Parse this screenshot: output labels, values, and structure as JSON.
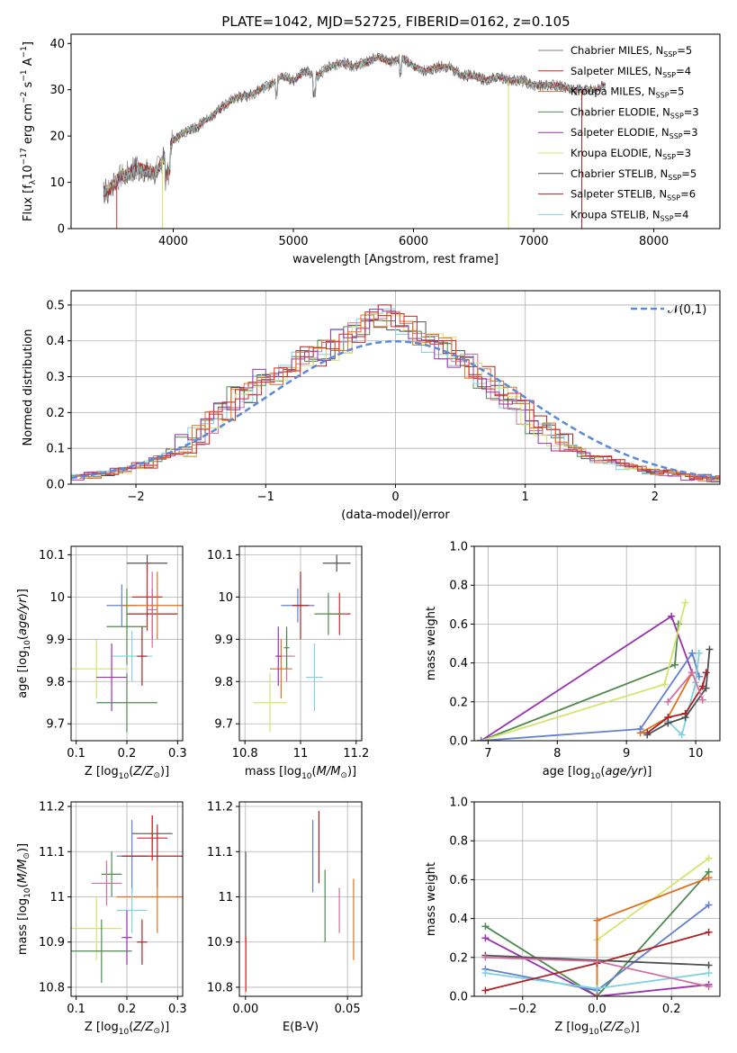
{
  "figure_title": "PLATE=1042, MJD=52725, FIBERID=0162, z=0.105",
  "colors": [
    "#808080",
    "#d62728",
    "#c07830",
    "#4f8a4f",
    "#9a30b0",
    "#d4e46c",
    "#505050",
    "#b02020",
    "#7fd0e0",
    "#d070a0",
    "#e07020",
    "#6080d0"
  ],
  "chart_data": [
    {
      "id": "spectrum",
      "type": "line",
      "title": "PLATE=1042, MJD=52725, FIBERID=0162, z=0.105",
      "xlabel": "wavelength [Angstrom, rest frame]",
      "ylabel": "Flux [f_λ10^-17 erg cm^-2 s^-1 A^-1]",
      "xlim": [
        3150,
        8550
      ],
      "ylim": [
        0,
        42
      ],
      "xticks": [
        4000,
        5000,
        6000,
        7000,
        8000
      ],
      "yticks": [
        0,
        10,
        20,
        30,
        40
      ],
      "grid": false,
      "legend_position": "top-right",
      "x": [
        3450,
        3550,
        3700,
        3850,
        4000,
        4100,
        4200,
        4300,
        4400,
        4500,
        4650,
        4800,
        4900,
        5000,
        5100,
        5200,
        5300,
        5400,
        5500,
        5600,
        5700,
        5800,
        5900,
        6000,
        6100,
        6200,
        6300,
        6400,
        6500,
        6600,
        6700,
        6800,
        6900,
        7000,
        7100,
        7200,
        7300,
        7400,
        7500,
        7600
      ],
      "y": [
        8,
        11,
        13,
        12,
        19,
        21,
        22,
        24,
        26,
        28,
        29,
        31,
        33,
        32,
        34,
        33,
        35,
        36,
        35,
        36,
        37,
        36,
        37,
        35,
        34,
        35,
        35,
        33,
        33,
        32,
        33,
        32,
        32,
        31,
        31,
        31,
        30,
        30,
        30,
        31
      ],
      "series": [
        {
          "name": "Chabrier MILES, N_SSP=5",
          "label_main": "Chabrier MILES, N",
          "label_sub": "SSP",
          "label_tail": "=5"
        },
        {
          "name": "Salpeter MILES, N_SSP=4",
          "label_main": "Salpeter MILES, N",
          "label_sub": "SSP",
          "label_tail": "=4"
        },
        {
          "name": "Kroupa MILES, N_SSP=5",
          "label_main": "Kroupa MILES, N",
          "label_sub": "SSP",
          "label_tail": "=5"
        },
        {
          "name": "Chabrier ELODIE, N_SSP=3",
          "label_main": "Chabrier ELODIE, N",
          "label_sub": "SSP",
          "label_tail": "=3"
        },
        {
          "name": "Salpeter ELODIE, N_SSP=3",
          "label_main": "Salpeter ELODIE, N",
          "label_sub": "SSP",
          "label_tail": "=3"
        },
        {
          "name": "Kroupa ELODIE, N_SSP=3",
          "label_main": "Kroupa ELODIE, N",
          "label_sub": "SSP",
          "label_tail": "=3"
        },
        {
          "name": "Chabrier STELIB, N_SSP=5",
          "label_main": "Chabrier STELIB, N",
          "label_sub": "SSP",
          "label_tail": "=5"
        },
        {
          "name": "Salpeter STELIB, N_SSP=6",
          "label_main": "Salpeter STELIB, N",
          "label_sub": "SSP",
          "label_tail": "=6"
        },
        {
          "name": "Kroupa STELIB, N_SSP=4",
          "label_main": "Kroupa STELIB, N",
          "label_sub": "SSP",
          "label_tail": "=4"
        }
      ]
    },
    {
      "id": "residuals",
      "type": "line",
      "xlabel": "(data-model)/error",
      "ylabel": "Normed distribution",
      "xlim": [
        -2.5,
        2.5
      ],
      "ylim": [
        0,
        0.54
      ],
      "xticks": [
        -2,
        -1,
        0,
        1,
        2
      ],
      "yticks": [
        0.0,
        0.1,
        0.2,
        0.3,
        0.4,
        0.5
      ],
      "grid": true,
      "legend_position": "top-right",
      "legend_label": "𝒩(0,1)",
      "bins_start": -2.5,
      "bin_width": 0.1,
      "histogram": [
        0.02,
        0.025,
        0.03,
        0.04,
        0.05,
        0.055,
        0.07,
        0.09,
        0.11,
        0.14,
        0.17,
        0.2,
        0.24,
        0.26,
        0.29,
        0.31,
        0.33,
        0.35,
        0.36,
        0.38,
        0.4,
        0.42,
        0.45,
        0.47,
        0.46,
        0.44,
        0.42,
        0.4,
        0.38,
        0.36,
        0.33,
        0.3,
        0.27,
        0.24,
        0.2,
        0.17,
        0.14,
        0.12,
        0.1,
        0.08,
        0.07,
        0.06,
        0.05,
        0.04,
        0.035,
        0.03,
        0.025,
        0.02,
        0.018,
        0.015
      ],
      "series": [
        {
          "name": "N(0,1)",
          "type": "gaussian",
          "mean": 0,
          "sigma": 1
        }
      ]
    },
    {
      "id": "age-vs-Z",
      "type": "scatter",
      "xlabel": "Z [log10(Z/Z☉)]",
      "ylabel": "age [log10(age/yr)]",
      "xlim": [
        0.09,
        0.31
      ],
      "ylim": [
        9.66,
        10.12
      ],
      "xticks": [
        0.1,
        0.2,
        0.3
      ],
      "yticks": [
        9.7,
        9.8,
        9.9,
        10.0,
        10.1
      ],
      "grid": true,
      "points": [
        {
          "x": 0.24,
          "y": 10.08,
          "xerr": 0.04,
          "yerr": 0.02
        },
        {
          "x": 0.24,
          "y": 10.0,
          "xerr": 0.03,
          "yerr": 0.08
        },
        {
          "x": 0.19,
          "y": 9.98,
          "xerr": 0.03,
          "yerr": 0.05
        },
        {
          "x": 0.25,
          "y": 9.96,
          "xerr": 0.05,
          "yerr": 0.06
        },
        {
          "x": 0.2,
          "y": 9.93,
          "xerr": 0.04,
          "yerr": 0.09
        },
        {
          "x": 0.25,
          "y": 9.97,
          "xerr": 0.01,
          "yerr": 0.09
        },
        {
          "x": 0.26,
          "y": 9.98,
          "xerr": 0.07,
          "yerr": 0.08
        },
        {
          "x": 0.21,
          "y": 9.86,
          "xerr": 0.04,
          "yerr": 0.06
        },
        {
          "x": 0.14,
          "y": 9.83,
          "xerr": 0.06,
          "yerr": 0.07
        },
        {
          "x": 0.17,
          "y": 9.81,
          "xerr": 0.03,
          "yerr": 0.08
        },
        {
          "x": 0.2,
          "y": 9.75,
          "xerr": 0.06,
          "yerr": 0.07
        },
        {
          "x": 0.23,
          "y": 9.86,
          "xerr": 0.01,
          "yerr": 0.07
        }
      ]
    },
    {
      "id": "age-vs-mass",
      "type": "scatter",
      "xlabel": "mass [log10(M/M☉)]",
      "ylabel": "",
      "xlim": [
        10.78,
        11.22
      ],
      "ylim": [
        9.66,
        10.12
      ],
      "xticks": [
        10.8,
        11.0,
        11.2
      ],
      "yticks": [
        9.7,
        9.8,
        9.9,
        10.0,
        10.1
      ],
      "grid": true,
      "points": [
        {
          "x": 11.13,
          "y": 10.08,
          "xerr": 0.05,
          "yerr": 0.02
        },
        {
          "x": 11.14,
          "y": 9.96,
          "xerr": 0.04,
          "yerr": 0.05
        },
        {
          "x": 10.99,
          "y": 9.98,
          "xerr": 0.06,
          "yerr": 0.04
        },
        {
          "x": 11.0,
          "y": 9.98,
          "xerr": 0.03,
          "yerr": 0.08
        },
        {
          "x": 11.1,
          "y": 9.96,
          "xerr": 0.05,
          "yerr": 0.05
        },
        {
          "x": 10.95,
          "y": 9.86,
          "xerr": 0.03,
          "yerr": 0.06
        },
        {
          "x": 10.93,
          "y": 9.83,
          "xerr": 0.04,
          "yerr": 0.07
        },
        {
          "x": 11.05,
          "y": 9.81,
          "xerr": 0.03,
          "yerr": 0.08
        },
        {
          "x": 10.89,
          "y": 9.75,
          "xerr": 0.06,
          "yerr": 0.07
        },
        {
          "x": 10.92,
          "y": 9.86,
          "xerr": 0.01,
          "yerr": 0.07
        },
        {
          "x": 10.95,
          "y": 9.88,
          "xerr": 0.01,
          "yerr": 0.05
        }
      ]
    },
    {
      "id": "weight-vs-age",
      "type": "line",
      "xlabel": "age [log10(age/yr)]",
      "ylabel": "mass weight",
      "xlim": [
        6.8,
        10.35
      ],
      "ylim": [
        0,
        1.0
      ],
      "xticks": [
        7,
        8,
        9,
        10
      ],
      "yticks": [
        0.0,
        0.2,
        0.4,
        0.6,
        0.8,
        1.0
      ],
      "grid": true,
      "series": [
        {
          "name": "Chabrier ELODIE",
          "x": [
            6.9,
            9.7,
            9.75
          ],
          "y": [
            0.0,
            0.39,
            0.6
          ]
        },
        {
          "name": "Salpeter ELODIE",
          "x": [
            6.9,
            9.65,
            9.95
          ],
          "y": [
            0.0,
            0.64,
            0.35
          ]
        },
        {
          "name": "Kroupa ELODIE",
          "x": [
            6.9,
            9.55,
            9.85
          ],
          "y": [
            0.0,
            0.29,
            0.71
          ]
        },
        {
          "name": "Kroupa MILES",
          "x": [
            9.2,
            9.6,
            9.95
          ],
          "y": [
            0.04,
            0.12,
            0.35
          ]
        },
        {
          "name": "Chabrier MILES",
          "x": [
            6.9,
            9.2,
            9.95,
            10.05
          ],
          "y": [
            0.0,
            0.06,
            0.45,
            0.33
          ]
        },
        {
          "name": "Kroupa STELIB",
          "x": [
            9.6,
            9.8,
            10.0,
            10.05
          ],
          "y": [
            0.1,
            0.03,
            0.3,
            0.45
          ]
        },
        {
          "name": "Salpeter STELIB",
          "x": [
            9.3,
            9.6,
            9.85,
            10.1,
            10.15
          ],
          "y": [
            0.04,
            0.12,
            0.14,
            0.28,
            0.35
          ]
        },
        {
          "name": "Chabrier STELIB",
          "x": [
            9.3,
            9.6,
            9.85,
            10.15,
            10.2
          ],
          "y": [
            0.03,
            0.09,
            0.12,
            0.27,
            0.47
          ]
        },
        {
          "name": "pink",
          "x": [
            9.6,
            9.95,
            10.1
          ],
          "y": [
            0.2,
            0.35,
            0.21
          ]
        }
      ]
    },
    {
      "id": "mass-vs-Z",
      "type": "scatter",
      "xlabel": "Z [log10(Z/Z☉)]",
      "ylabel": "mass [log10(M/M☉)]",
      "xlim": [
        0.09,
        0.31
      ],
      "ylim": [
        10.78,
        11.21
      ],
      "xticks": [
        0.1,
        0.2,
        0.3
      ],
      "yticks": [
        10.8,
        10.9,
        11.0,
        11.1,
        11.2
      ],
      "grid": true,
      "points": [
        {
          "x": 0.25,
          "y": 11.14,
          "xerr": 0.04,
          "yerr": 0.04
        },
        {
          "x": 0.25,
          "y": 11.13,
          "xerr": 0.03,
          "yerr": 0.05
        },
        {
          "x": 0.21,
          "y": 11.09,
          "xerr": 0.03,
          "yerr": 0.08
        },
        {
          "x": 0.26,
          "y": 11.09,
          "xerr": 0.07,
          "yerr": 0.07
        },
        {
          "x": 0.17,
          "y": 11.05,
          "xerr": 0.02,
          "yerr": 0.05
        },
        {
          "x": 0.16,
          "y": 11.03,
          "xerr": 0.03,
          "yerr": 0.05
        },
        {
          "x": 0.26,
          "y": 11.0,
          "xerr": 0.08,
          "yerr": 0.08
        },
        {
          "x": 0.21,
          "y": 10.97,
          "xerr": 0.03,
          "yerr": 0.05
        },
        {
          "x": 0.14,
          "y": 10.93,
          "xerr": 0.05,
          "yerr": 0.07
        },
        {
          "x": 0.2,
          "y": 10.91,
          "xerr": 0.01,
          "yerr": 0.06
        },
        {
          "x": 0.15,
          "y": 10.88,
          "xerr": 0.06,
          "yerr": 0.07
        },
        {
          "x": 0.23,
          "y": 10.9,
          "xerr": 0.01,
          "yerr": 0.05
        }
      ]
    },
    {
      "id": "mass-vs-EBV",
      "type": "scatter",
      "xlabel": "E(B-V)",
      "ylabel": "",
      "xlim": [
        -0.003,
        0.057
      ],
      "ylim": [
        10.78,
        11.21
      ],
      "xticks": [
        0.0,
        0.05
      ],
      "xtick_labels": [
        "0.00",
        "0.05"
      ],
      "yticks": [
        10.8,
        10.9,
        11.0,
        11.1,
        11.2
      ],
      "grid": true,
      "points": [
        {
          "x": 0.0001,
          "y": 11.0,
          "yerr": 0.1
        },
        {
          "x": 0.0002,
          "y": 10.85,
          "yerr": 0.06
        },
        {
          "x": 0.033,
          "y": 11.09,
          "yerr": 0.08
        },
        {
          "x": 0.036,
          "y": 11.11,
          "yerr": 0.08
        },
        {
          "x": 0.039,
          "y": 10.98,
          "yerr": 0.08
        },
        {
          "x": 0.046,
          "y": 10.97,
          "yerr": 0.05
        },
        {
          "x": 0.053,
          "y": 10.95,
          "yerr": 0.09
        }
      ]
    },
    {
      "id": "weight-vs-Z",
      "type": "line",
      "xlabel": "Z [log10(Z/Z☉)]",
      "ylabel": "mass weight",
      "xlim": [
        -0.33,
        0.33
      ],
      "ylim": [
        0,
        1.0
      ],
      "xticks": [
        -0.2,
        0.0,
        0.2
      ],
      "xtick_labels": [
        "−0.2",
        "0.0",
        "0.2"
      ],
      "yticks": [
        0.0,
        0.2,
        0.4,
        0.6,
        0.8,
        1.0
      ],
      "grid": true,
      "series": [
        {
          "name": "Salpeter ELODIE",
          "x": [
            -0.3,
            0.0,
            0.3
          ],
          "y": [
            0.36,
            0.0,
            0.64
          ]
        },
        {
          "name": "Chabrier MILES",
          "x": [
            -0.3,
            0.0,
            0.3
          ],
          "y": [
            0.3,
            0.0,
            0.06
          ]
        },
        {
          "name": "Kroupa ELODIE",
          "x": [
            0.0,
            0.0,
            0.3
          ],
          "y": [
            0.0,
            0.29,
            0.71
          ]
        },
        {
          "name": "Chabrier ELODIE",
          "x": [
            0.0,
            0.0,
            0.3
          ],
          "y": [
            0.0,
            0.39,
            0.61
          ]
        },
        {
          "name": "Chabrier STELIB",
          "x": [
            -0.3,
            0.0,
            0.3
          ],
          "y": [
            0.14,
            0.03,
            0.47
          ]
        },
        {
          "name": "Salpeter STELIB",
          "x": [
            -0.3,
            0.0,
            0.3
          ],
          "y": [
            0.12,
            0.04,
            0.12
          ]
        },
        {
          "name": "Kroupa STELIB",
          "x": [
            -0.3,
            0.0,
            0.3
          ],
          "y": [
            0.03,
            0.17,
            0.33
          ]
        },
        {
          "name": "pink",
          "x": [
            -0.3,
            0.3
          ],
          "y": [
            0.21,
            0.16
          ]
        },
        {
          "name": "Kroupa MILES",
          "x": [
            -0.3,
            0.0,
            0.3
          ],
          "y": [
            0.2,
            0.18,
            0.05
          ]
        }
      ]
    }
  ]
}
